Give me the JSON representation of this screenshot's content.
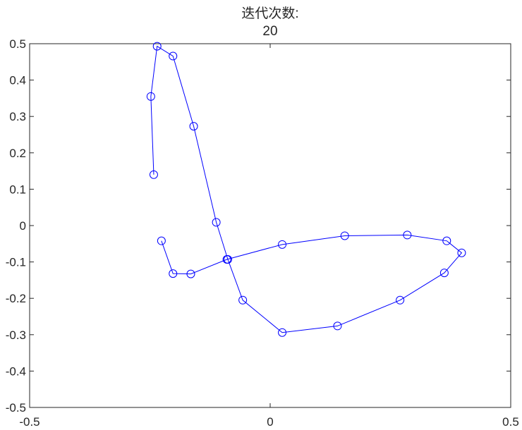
{
  "chart_data": {
    "type": "line",
    "title": [
      "迭代次数:",
      "20"
    ],
    "xlabel": "",
    "ylabel": "",
    "xlim": [
      -0.5,
      0.5
    ],
    "ylim": [
      -0.5,
      0.5
    ],
    "xticks": [
      -0.5,
      0,
      0.5
    ],
    "xtick_labels": [
      "-0.5",
      "0",
      "0.5"
    ],
    "yticks": [
      0.5,
      0.4,
      0.3,
      0.2,
      0.1,
      0,
      -0.1,
      -0.2,
      -0.3,
      -0.4,
      -0.5
    ],
    "ytick_labels": [
      "0.5",
      "0.4",
      "0.3",
      "0.2",
      "0.1",
      "0",
      "-0.1",
      "-0.2",
      "-0.3",
      "-0.4",
      "-0.5"
    ],
    "grid": false,
    "marker": "circle",
    "color": "#0000ff",
    "series": [
      {
        "x": [
          -0.242,
          -0.248,
          -0.235,
          -0.202,
          -0.159,
          -0.112,
          -0.088,
          -0.057,
          0.025,
          0.14,
          0.27,
          0.362,
          0.398,
          0.367,
          0.285,
          0.155,
          0.025,
          -0.09,
          -0.165,
          -0.202,
          -0.226
        ],
        "y": [
          0.14,
          0.355,
          0.493,
          0.466,
          0.273,
          0.009,
          -0.093,
          -0.205,
          -0.294,
          -0.276,
          -0.205,
          -0.13,
          -0.075,
          -0.042,
          -0.026,
          -0.028,
          -0.052,
          -0.093,
          -0.133,
          -0.132,
          -0.042
        ]
      }
    ]
  }
}
